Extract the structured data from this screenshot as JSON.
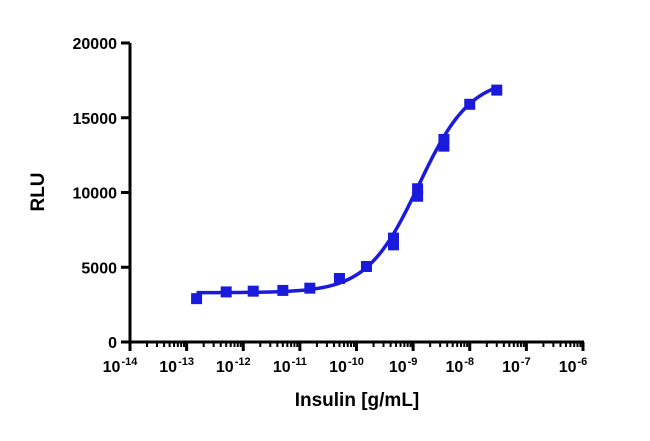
{
  "chart_data": {
    "type": "scatter",
    "title": "",
    "xlabel": "Insulin [g/mL]",
    "ylabel": "RLU",
    "x_scale": "log10",
    "xlim": [
      1e-14,
      1e-06
    ],
    "ylim": [
      0,
      20000
    ],
    "grid": false,
    "legend": "none",
    "x_ticks": [
      {
        "value": 1e-14,
        "base": "10",
        "exp": "-14"
      },
      {
        "value": 1e-13,
        "base": "10",
        "exp": "-13"
      },
      {
        "value": 1e-12,
        "base": "10",
        "exp": "-12"
      },
      {
        "value": 1e-11,
        "base": "10",
        "exp": "-11"
      },
      {
        "value": 1e-10,
        "base": "10",
        "exp": "-10"
      },
      {
        "value": 1e-09,
        "base": "10",
        "exp": "-9"
      },
      {
        "value": 1e-08,
        "base": "10",
        "exp": "-8"
      },
      {
        "value": 1e-07,
        "base": "10",
        "exp": "-7"
      },
      {
        "value": 1e-06,
        "base": "10",
        "exp": "-6"
      }
    ],
    "y_ticks": [
      {
        "value": 0,
        "label": "0"
      },
      {
        "value": 5000,
        "label": "5000"
      },
      {
        "value": 10000,
        "label": "10000"
      },
      {
        "value": 15000,
        "label": "15000"
      },
      {
        "value": 20000,
        "label": "20000"
      }
    ],
    "series": [
      {
        "color": "#1a1adc",
        "marker": "square",
        "x": [
          1.5e-13,
          5e-13,
          1.5e-12,
          5e-12,
          1.5e-11,
          5e-11,
          1.5e-10,
          4.5e-10,
          4.5e-10,
          1.2e-09,
          1.2e-09,
          3.5e-09,
          3.5e-09,
          1e-08,
          3e-08
        ],
        "y": [
          2900,
          3350,
          3400,
          3450,
          3600,
          4250,
          5050,
          6500,
          6950,
          9750,
          10250,
          13100,
          13550,
          15900,
          16850
        ]
      }
    ],
    "fit_curve": {
      "model": "4PL",
      "bottom": 3300,
      "top": 17700,
      "log_ec50": -8.9,
      "hill_slope": 0.95,
      "x_range": [
        1.5e-13,
        3e-08
      ],
      "color": "#1a1adc"
    }
  }
}
